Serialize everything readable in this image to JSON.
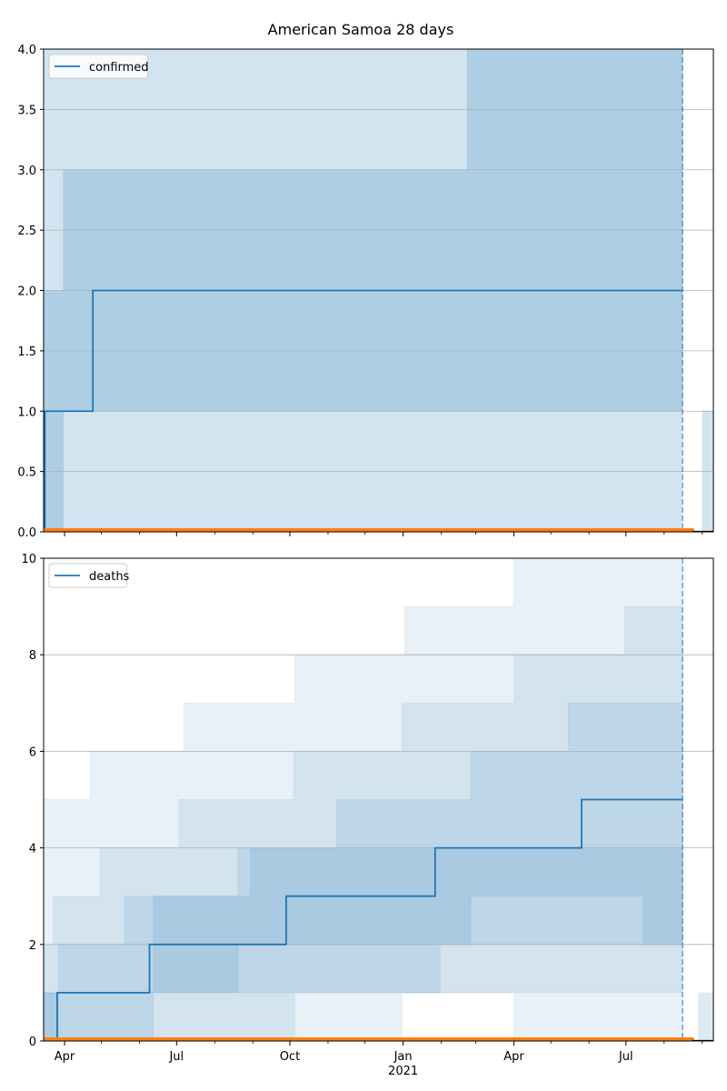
{
  "figure": {
    "title": "American Samoa 28 days"
  },
  "chart_data": [
    {
      "type": "line",
      "title": "",
      "xlabel": "",
      "ylabel": "",
      "xlim": [
        "2020-03-15",
        "2021-09-10"
      ],
      "ylim": [
        0,
        4.0
      ],
      "yticks": [
        0.0,
        0.5,
        1.0,
        1.5,
        2.0,
        2.5,
        3.0,
        3.5,
        4.0
      ],
      "ytick_labels": [
        "0.0",
        "0.5",
        "1.0",
        "1.5",
        "2.0",
        "2.5",
        "3.0",
        "3.5",
        "4.0"
      ],
      "grid": "y",
      "legend": "top-left",
      "forecast_date": "2021-08-16",
      "series": [
        {
          "name": "confirmed",
          "color": "#1f77b4",
          "step": true,
          "x": [
            "2020-03-15",
            "2020-03-16",
            "2020-04-24",
            "2021-08-16"
          ],
          "y": [
            0,
            1,
            2,
            2
          ]
        }
      ],
      "bands": [
        {
          "label": "",
          "color": "#1f77b4",
          "opacity": 0.2,
          "x": [
            "2020-03-15",
            "2020-03-16",
            "2020-04-24",
            "2021-08-16"
          ],
          "lower": [
            0,
            0,
            0,
            0
          ],
          "upper": [
            3,
            4,
            4,
            4
          ]
        },
        {
          "label": "",
          "color": "#1f77b4",
          "opacity": 0.2,
          "x": [
            "2020-03-15",
            "2020-03-18",
            "2020-03-31",
            "2021-02-20",
            "2021-02-22",
            "2021-08-16"
          ],
          "lower": [
            0,
            0,
            1,
            1,
            1,
            1
          ],
          "upper": [
            2,
            2,
            3,
            3,
            4,
            4
          ]
        },
        {
          "label": "",
          "color": "#1f77b4",
          "opacity": 0.2,
          "x": [
            "2021-09-01",
            "2021-09-10"
          ],
          "lower": [
            0,
            0
          ],
          "upper": [
            1,
            1
          ]
        }
      ],
      "observed": {
        "color": "#ff7f0e",
        "x": [
          "2020-03-15",
          "2021-08-24"
        ],
        "y": [
          0,
          0
        ]
      },
      "xticks": [
        "2020-04-01",
        "2020-07-01",
        "2020-10-01",
        "2021-01-01",
        "2021-04-01",
        "2021-07-01"
      ],
      "xtick_labels": [
        "",
        "",
        "",
        "",
        "",
        ""
      ]
    },
    {
      "type": "line",
      "title": "",
      "xlabel": "",
      "ylabel": "",
      "xlim": [
        "2020-03-15",
        "2021-09-10"
      ],
      "ylim": [
        0,
        10
      ],
      "yticks": [
        0,
        2,
        4,
        6,
        8,
        10
      ],
      "ytick_labels": [
        "0",
        "2",
        "4",
        "6",
        "8",
        "10"
      ],
      "grid": "y",
      "legend": "top-left",
      "forecast_date": "2021-08-16",
      "series": [
        {
          "name": "deaths",
          "color": "#1f77b4",
          "step": true,
          "x": [
            "2020-03-15",
            "2020-03-26",
            "2020-06-09",
            "2020-09-28",
            "2021-01-27",
            "2021-05-26",
            "2021-08-16"
          ],
          "y": [
            0,
            1,
            2,
            3,
            4,
            5,
            5
          ]
        }
      ],
      "bands": [
        {
          "label": "",
          "color": "#1f77b4",
          "opacity": 0.1,
          "x": [
            "2020-03-15",
            "2020-04-22",
            "2020-07-07",
            "2020-10-05",
            "2021-01-02",
            "2021-04-01",
            "2021-06-30",
            "2021-08-16"
          ],
          "lower": [
            0,
            0,
            0,
            1,
            1,
            0,
            0,
            0
          ],
          "upper": [
            5,
            6,
            7,
            8,
            9,
            10,
            10,
            10
          ]
        },
        {
          "label": "",
          "color": "#1f77b4",
          "opacity": 0.1,
          "x": [
            "2020-03-15",
            "2020-03-23",
            "2020-04-30",
            "2020-07-03",
            "2020-10-04",
            "2020-12-31",
            "2021-04-01",
            "2021-06-30",
            "2021-08-16"
          ],
          "lower": [
            0,
            0,
            0,
            0,
            0,
            1,
            1,
            1,
            1
          ],
          "upper": [
            2,
            3,
            4,
            5,
            6,
            7,
            8,
            9,
            9
          ]
        },
        {
          "label": "",
          "color": "#1f77b4",
          "opacity": 0.12,
          "x": [
            "2020-03-15",
            "2020-03-27",
            "2020-05-20",
            "2020-08-20",
            "2020-11-08",
            "2021-02-25",
            "2021-05-15",
            "2021-07-15",
            "2021-08-16"
          ],
          "lower": [
            0,
            1,
            1,
            2,
            2,
            3,
            3,
            2,
            2
          ],
          "upper": [
            1,
            2,
            3,
            4,
            5,
            6,
            7,
            7,
            7
          ]
        },
        {
          "label": "",
          "color": "#1f77b4",
          "opacity": 0.12,
          "x": [
            "2020-03-15",
            "2020-04-24",
            "2020-06-12",
            "2020-08-30",
            "2021-01-31",
            "2021-08-16"
          ],
          "lower": [
            0,
            0,
            1,
            1,
            2,
            3
          ],
          "upper": [
            1,
            1,
            3,
            4,
            4,
            5
          ]
        },
        {
          "label": "",
          "color": "#1f77b4",
          "opacity": 0.15,
          "x": [
            "2021-08-29",
            "2021-09-10"
          ],
          "lower": [
            0,
            0
          ],
          "upper": [
            1,
            1
          ]
        }
      ],
      "observed": {
        "color": "#ff7f0e",
        "x": [
          "2020-03-15",
          "2021-08-24"
        ],
        "y": [
          0,
          0
        ]
      },
      "xticks": [
        "2020-04-01",
        "2020-07-01",
        "2020-10-01",
        "2021-01-01",
        "2021-04-01",
        "2021-07-01"
      ],
      "xtick_labels": [
        "Apr",
        "Jul",
        "Oct",
        "Jan",
        "Apr",
        "Jul"
      ],
      "xtick_sublabel": "2021"
    }
  ]
}
